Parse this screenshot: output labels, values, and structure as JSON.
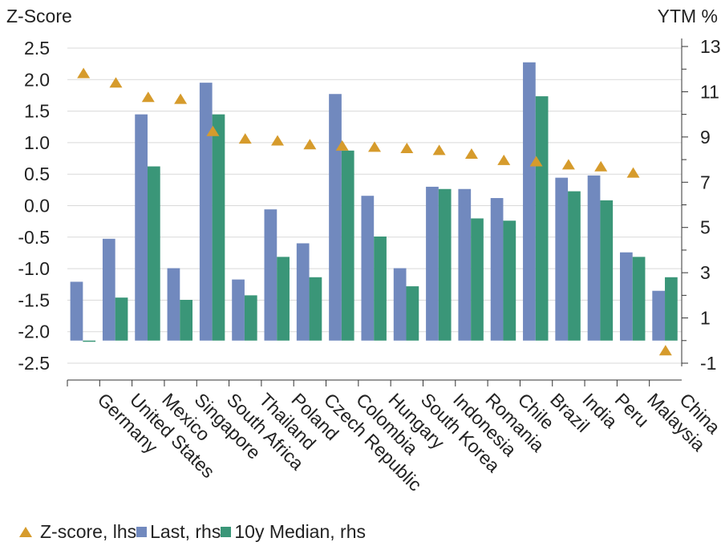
{
  "chart_data": {
    "type": "bar",
    "y_label_left": "Z-Score",
    "y_label_right": "YTM %",
    "left_axis": {
      "min": -2.5,
      "max": 2.5,
      "ticks": [
        "2.5",
        "2.0",
        "1.5",
        "1.0",
        "0.5",
        "0.0",
        "-0.5",
        "-1.0",
        "-1.5",
        "-2.0",
        "-2.5"
      ]
    },
    "right_axis": {
      "min": -1,
      "max": 13,
      "ticks": [
        "13",
        "11",
        "9",
        "7",
        "5",
        "3",
        "1",
        "-1"
      ]
    },
    "categories": [
      "Germany",
      "United States",
      "Mexico",
      "Singapore",
      "South Africa",
      "Thailand",
      "Poland",
      "Czech Republic",
      "Colombia",
      "Hungary",
      "South Korea",
      "Indonesia",
      "Romania",
      "Chile",
      "Brazil",
      "India",
      "Peru",
      "Malaysia",
      "China"
    ],
    "series": [
      {
        "name": "Z-score, lhs",
        "axis": "left",
        "kind": "marker",
        "color": "#D69B2C",
        "values": [
          2.1,
          1.95,
          1.72,
          1.69,
          1.18,
          1.06,
          1.03,
          0.97,
          0.95,
          0.93,
          0.91,
          0.88,
          0.82,
          0.72,
          0.7,
          0.65,
          0.62,
          0.52,
          -2.3
        ]
      },
      {
        "name": "Last, rhs",
        "axis": "right",
        "kind": "bar",
        "color": "#7189BE",
        "values": [
          2.6,
          4.5,
          10.0,
          3.2,
          11.4,
          2.7,
          5.8,
          4.3,
          10.9,
          6.4,
          3.2,
          6.8,
          6.7,
          6.3,
          12.3,
          7.2,
          7.3,
          3.9,
          2.2
        ]
      },
      {
        "name": "10y Median, rhs",
        "axis": "right",
        "kind": "bar",
        "color": "#3A9678",
        "values": [
          -0.05,
          1.9,
          7.7,
          1.8,
          10.0,
          2.0,
          3.7,
          2.8,
          8.4,
          4.6,
          2.4,
          6.7,
          5.4,
          5.3,
          10.8,
          6.6,
          6.2,
          3.7,
          2.8
        ]
      }
    ],
    "grid": true,
    "legend_position": "bottom-left"
  }
}
